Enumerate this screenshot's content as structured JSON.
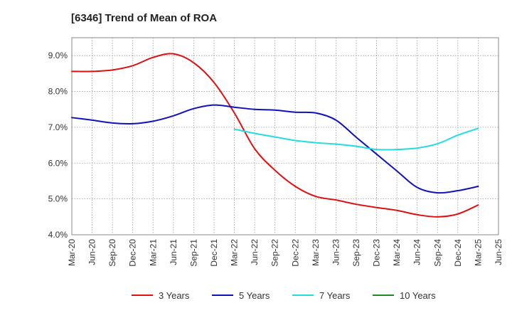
{
  "chart_data": {
    "type": "line",
    "title": "[6346]  Trend of Mean of ROA",
    "xlabel": "",
    "ylabel": "",
    "ylim": [
      4.0,
      9.5
    ],
    "yticks": [
      "4.0%",
      "5.0%",
      "6.0%",
      "7.0%",
      "8.0%",
      "9.0%"
    ],
    "ytick_values": [
      4.0,
      5.0,
      6.0,
      7.0,
      8.0,
      9.0
    ],
    "x_categories": [
      "Mar-20",
      "Jun-20",
      "Sep-20",
      "Dec-20",
      "Mar-21",
      "Jun-21",
      "Sep-21",
      "Dec-21",
      "Mar-22",
      "Jun-22",
      "Sep-22",
      "Dec-22",
      "Mar-23",
      "Jun-23",
      "Sep-23",
      "Dec-23",
      "Mar-24",
      "Jun-24",
      "Sep-24",
      "Dec-24",
      "Mar-25",
      "Jun-25"
    ],
    "grid": true,
    "legend_position": "bottom",
    "series": [
      {
        "name": "3 Years",
        "color": "#dd1111",
        "values": [
          8.56,
          8.56,
          8.6,
          8.72,
          8.95,
          9.05,
          8.8,
          8.25,
          7.4,
          6.4,
          5.8,
          5.35,
          5.07,
          4.97,
          4.85,
          4.76,
          4.68,
          4.56,
          4.5,
          4.58,
          4.83,
          null
        ]
      },
      {
        "name": "5 Years",
        "color": "#1111bb",
        "values": [
          7.27,
          7.2,
          7.12,
          7.1,
          7.17,
          7.32,
          7.52,
          7.62,
          7.56,
          7.5,
          7.48,
          7.42,
          7.4,
          7.2,
          6.72,
          6.25,
          5.78,
          5.32,
          5.17,
          5.23,
          5.35,
          null
        ]
      },
      {
        "name": "7 Years",
        "color": "#22dddd",
        "values": [
          null,
          null,
          null,
          null,
          null,
          null,
          null,
          null,
          6.95,
          6.83,
          6.73,
          6.63,
          6.57,
          6.53,
          6.47,
          6.38,
          6.38,
          6.42,
          6.54,
          6.78,
          6.97,
          null
        ]
      },
      {
        "name": "10 Years",
        "color": "#228822",
        "values": [
          null,
          null,
          null,
          null,
          null,
          null,
          null,
          null,
          null,
          null,
          null,
          null,
          null,
          null,
          null,
          null,
          null,
          null,
          null,
          null,
          null,
          null
        ]
      }
    ]
  }
}
